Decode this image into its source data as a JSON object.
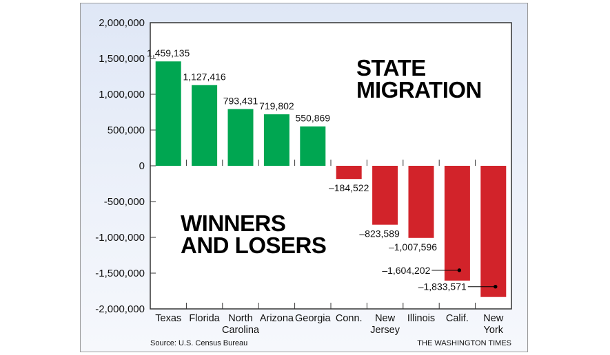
{
  "chart_data": {
    "type": "bar",
    "title": "STATE MIGRATION",
    "subtitle": "WINNERS AND LOSERS",
    "categories": [
      [
        "Texas"
      ],
      [
        "Florida"
      ],
      [
        "North",
        "Carolina"
      ],
      [
        "Arizona"
      ],
      [
        "Georgia"
      ],
      [
        "Conn."
      ],
      [
        "New",
        "Jersey"
      ],
      [
        "Illinois"
      ],
      [
        "Calif."
      ],
      [
        "New",
        "York"
      ]
    ],
    "values": [
      1459135,
      1127416,
      793431,
      719802,
      550869,
      -184522,
      -823589,
      -1007596,
      -1604202,
      -1833571
    ],
    "labels": [
      "1,459,135",
      "1,127,416",
      "793,431",
      "719,802",
      "550,869",
      "–184,522",
      "–823,589",
      "–1,007,596",
      "–1,604,202",
      "–1,833,571"
    ],
    "yticks": [
      2000000,
      1500000,
      1000000,
      500000,
      0,
      -500000,
      -1000000,
      -1500000,
      -2000000
    ],
    "ytick_labels": [
      "2,000,000",
      "1,500,000",
      "1,000,000",
      "500,000",
      "0",
      "-500,000",
      "-1,000,000",
      "-1,500,000",
      "-2,000,000"
    ],
    "ylim": [
      -2000000,
      2000000
    ],
    "colors": {
      "positive": "#00a651",
      "negative": "#d2232a"
    },
    "source": "Source: U.S. Census Bureau",
    "credit": "THE WASHINGTON TIMES"
  }
}
